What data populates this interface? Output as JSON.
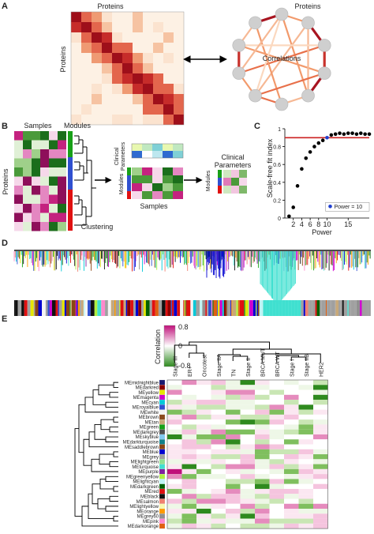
{
  "panels": {
    "a": {
      "label": "A",
      "matrix_title": "Proteins",
      "matrix_ylabel": "Proteins",
      "network_title": "Proteins",
      "network_center": "Correlations"
    },
    "b": {
      "label": "B",
      "samples_label": "Samples",
      "modules_label": "Modules",
      "proteins_label": "Proteins",
      "clustering_label": "Clustering",
      "clinical_label_rot": "Clinical\nParameters",
      "clinical_label_a": "Clinical",
      "clinical_label_b": "Parameters",
      "modules_rot": "Modules",
      "samples_bottom": "Samples",
      "clinical_right_a": "Clinical",
      "clinical_right_b": "Parameters",
      "modules_rot2": "Modules"
    },
    "c": {
      "label": "C",
      "ylabel": "Scale-free fit index",
      "xlabel": "Power",
      "legend": "Power = 10",
      "threshold_color": "#cc2020"
    },
    "d": {
      "label": "D"
    },
    "e": {
      "label": "E",
      "colorbar_title": "Correlation",
      "colorbar_max": "0.8",
      "colorbar_mid": "0",
      "colorbar_min": "-0.8",
      "clinical_columns": [
        "Stage III",
        "ER+",
        "Oncotest",
        "Stage IIA",
        "TN",
        "Stage II",
        "BRCA MUT",
        "BRCA WT",
        "Stage I",
        "Stage IIB",
        "HER2"
      ],
      "modules": [
        "MEmidnightblue",
        "MEdarkred",
        "MEyellow",
        "MEmagenta",
        "MEcyan",
        "MEroyalblue",
        "MEwhite",
        "MEbrown",
        "MEtan",
        "MEgreen",
        "MEdarkgrey",
        "MEskyblue",
        "MEdarkturquoise",
        "MEsaddlebrown",
        "MEblue",
        "MEgrey",
        "MElightgreen",
        "MEturquoise",
        "MEpurple",
        "MEgreenyellow",
        "MElightcyan",
        "MEdarkgreen",
        "MEred",
        "MEblack",
        "MEsalmon",
        "MElightyellow",
        "MEorange",
        "MEgrey60",
        "MEpink",
        "MEdarkorange"
      ],
      "module_colors": [
        "#191970",
        "#8b0000",
        "#e6e600",
        "#d000d0",
        "#00c8d8",
        "#3050d0",
        "#f4f4f4",
        "#8b4a20",
        "#c8a878",
        "#18a018",
        "#505050",
        "#80c8f0",
        "#10808a",
        "#8b4513",
        "#0000d0",
        "#a0a0a0",
        "#90e090",
        "#40e0d0",
        "#8020a0",
        "#b0f040",
        "#c0f4f4",
        "#006000",
        "#e01010",
        "#111111",
        "#f08070",
        "#f8f8b0",
        "#ff9a00",
        "#909090",
        "#ff88cc",
        "#e06010"
      ]
    }
  },
  "chart_data": {
    "type": "scatter",
    "xlabel": "Power",
    "ylabel": "Scale-free fit index",
    "x": [
      1,
      2,
      3,
      4,
      5,
      6,
      7,
      8,
      9,
      10,
      11,
      12,
      13,
      14,
      15,
      16,
      17,
      18,
      19,
      20
    ],
    "y": [
      0.02,
      0.12,
      0.36,
      0.55,
      0.67,
      0.74,
      0.8,
      0.84,
      0.87,
      0.9,
      0.93,
      0.94,
      0.95,
      0.94,
      0.95,
      0.95,
      0.94,
      0.95,
      0.94,
      0.94
    ],
    "xticks": [
      "2",
      "4",
      "6",
      "8",
      "10",
      "15"
    ],
    "yticks": [
      "0",
      "0.2",
      "0.4",
      "0.6",
      "0.8",
      "1"
    ],
    "threshold": 0.9,
    "highlight": {
      "x": 10,
      "label": "Power = 10"
    },
    "xlim": [
      0,
      20
    ],
    "ylim": [
      0,
      1
    ]
  }
}
